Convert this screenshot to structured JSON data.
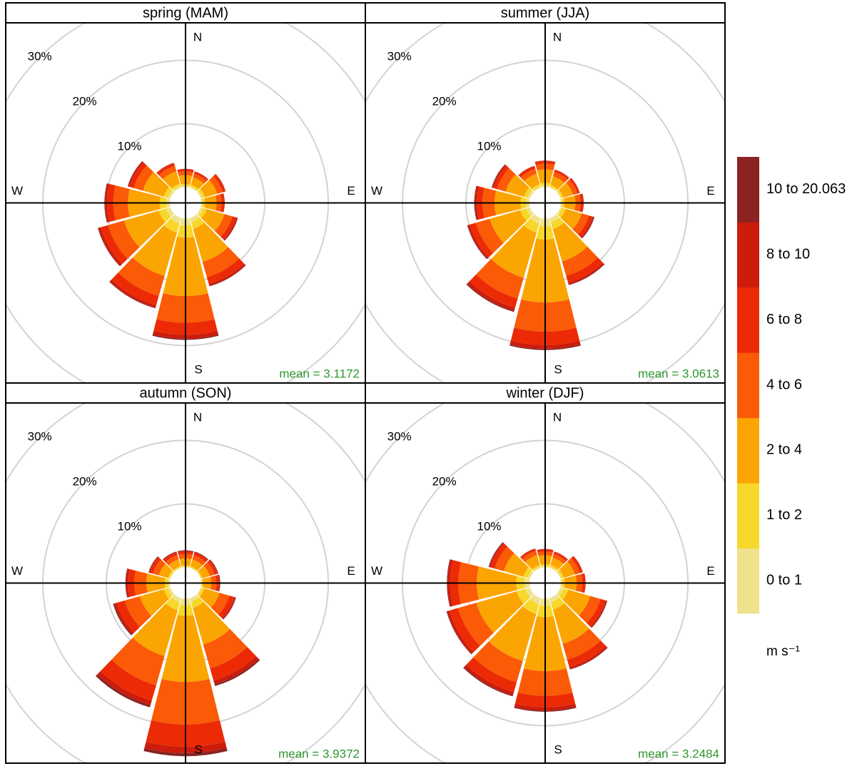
{
  "chart_data": [
    {
      "type": "windrose",
      "title": "spring (MAM)",
      "annotation": "mean = 3.1172",
      "directions": [
        0,
        30,
        60,
        90,
        120,
        150,
        180,
        210,
        240,
        270,
        300,
        330
      ],
      "compass": [
        "N",
        "E",
        "S",
        "W"
      ],
      "rlim": [
        0,
        30
      ],
      "rticks": [
        {
          "value": 10,
          "label": "10%"
        },
        {
          "value": 20,
          "label": "20%"
        },
        {
          "value": 30,
          "label": "30%"
        }
      ],
      "series": [
        {
          "values": [
            0.2,
            0.2,
            0.3,
            0.2,
            0.4,
            0.7,
            1.1,
            0.9,
            0.7,
            0.6,
            0.4,
            0.3
          ]
        },
        {
          "values": [
            0.3,
            0.3,
            0.4,
            0.4,
            0.6,
            1.1,
            1.9,
            1.5,
            1.2,
            1.0,
            0.7,
            0.4
          ]
        },
        {
          "values": [
            1.4,
            1.2,
            2.0,
            1.8,
            2.9,
            5.4,
            9.2,
            7.1,
            5.7,
            5.0,
            3.4,
            2.0
          ]
        },
        {
          "values": [
            0.6,
            0.6,
            0.9,
            0.8,
            1.3,
            2.5,
            4.2,
            3.3,
            2.6,
            2.3,
            1.5,
            0.9
          ]
        },
        {
          "values": [
            0.3,
            0.3,
            0.4,
            0.4,
            0.6,
            1.1,
            1.9,
            1.5,
            1.2,
            1.0,
            0.7,
            0.4
          ]
        },
        {
          "values": [
            0.1,
            0.1,
            0.1,
            0.1,
            0.2,
            0.3,
            0.6,
            0.4,
            0.4,
            0.3,
            0.2,
            0.1
          ]
        },
        {
          "values": [
            0.0,
            0.0,
            0.0,
            0.0,
            0.1,
            0.1,
            0.2,
            0.1,
            0.1,
            0.1,
            0.1,
            0.0
          ]
        }
      ]
    },
    {
      "type": "windrose",
      "title": "summer (JJA)",
      "annotation": "mean = 3.0613",
      "directions": [
        0,
        30,
        60,
        90,
        120,
        150,
        180,
        210,
        240,
        270,
        300,
        330
      ],
      "compass": [
        "N",
        "E",
        "S",
        "W"
      ],
      "rlim": [
        0,
        30
      ],
      "rticks": [
        {
          "value": 10,
          "label": "10%"
        },
        {
          "value": 20,
          "label": "20%"
        },
        {
          "value": 30,
          "label": "30%"
        }
      ],
      "series": [
        {
          "values": [
            0.3,
            0.2,
            0.2,
            0.2,
            0.3,
            0.7,
            1.2,
            0.9,
            0.6,
            0.5,
            0.4,
            0.2
          ]
        },
        {
          "values": [
            0.4,
            0.3,
            0.3,
            0.4,
            0.6,
            1.1,
            2.1,
            1.5,
            1.0,
            0.9,
            0.6,
            0.4
          ]
        },
        {
          "values": [
            2.1,
            1.4,
            1.6,
            1.7,
            2.6,
            5.3,
            9.9,
            7.4,
            5.0,
            4.1,
            3.0,
            1.7
          ]
        },
        {
          "values": [
            0.9,
            0.7,
            0.7,
            0.8,
            1.2,
            2.4,
            4.6,
            3.4,
            2.3,
            1.9,
            1.4,
            0.8
          ]
        },
        {
          "values": [
            0.4,
            0.3,
            0.3,
            0.4,
            0.6,
            1.1,
            2.1,
            1.5,
            1.0,
            0.9,
            0.6,
            0.4
          ]
        },
        {
          "values": [
            0.1,
            0.1,
            0.1,
            0.1,
            0.2,
            0.3,
            0.6,
            0.5,
            0.3,
            0.3,
            0.2,
            0.1
          ]
        },
        {
          "values": [
            0.0,
            0.0,
            0.0,
            0.0,
            0.1,
            0.1,
            0.2,
            0.2,
            0.1,
            0.1,
            0.1,
            0.0
          ]
        }
      ]
    },
    {
      "type": "windrose",
      "title": "autumn (SON)",
      "annotation": "mean = 3.9372",
      "directions": [
        0,
        30,
        60,
        90,
        120,
        150,
        180,
        210,
        240,
        270,
        300,
        330
      ],
      "compass": [
        "N",
        "E",
        "S",
        "W"
      ],
      "rlim": [
        0,
        30
      ],
      "rticks": [
        {
          "value": 10,
          "label": "10%"
        },
        {
          "value": 20,
          "label": "20%"
        },
        {
          "value": 30,
          "label": "30%"
        }
      ],
      "series": [
        {
          "values": [
            0.1,
            0.1,
            0.1,
            0.1,
            0.2,
            0.6,
            1.0,
            0.7,
            0.4,
            0.3,
            0.1,
            0.1
          ]
        },
        {
          "values": [
            0.2,
            0.2,
            0.2,
            0.2,
            0.4,
            1.0,
            1.7,
            1.3,
            0.7,
            0.5,
            0.3,
            0.2
          ]
        },
        {
          "values": [
            1.1,
            1.1,
            1.2,
            1.3,
            2.5,
            6.0,
            10.4,
            7.5,
            3.9,
            2.9,
            1.5,
            1.1
          ]
        },
        {
          "values": [
            0.7,
            0.7,
            0.8,
            0.8,
            1.6,
            3.9,
            6.7,
            4.8,
            2.5,
            1.9,
            1.0,
            0.7
          ]
        },
        {
          "values": [
            0.4,
            0.4,
            0.4,
            0.4,
            0.8,
            2.0,
            3.5,
            2.5,
            1.3,
            1.0,
            0.5,
            0.4
          ]
        },
        {
          "values": [
            0.1,
            0.1,
            0.1,
            0.1,
            0.2,
            0.6,
            1.0,
            0.7,
            0.4,
            0.3,
            0.1,
            0.1
          ]
        },
        {
          "values": [
            0.1,
            0.1,
            0.1,
            0.1,
            0.1,
            0.3,
            0.5,
            0.4,
            0.2,
            0.1,
            0.1,
            0.1
          ]
        }
      ]
    },
    {
      "type": "windrose",
      "title": "winter (DJF)",
      "annotation": "mean = 3.2484",
      "directions": [
        0,
        30,
        60,
        90,
        120,
        150,
        180,
        210,
        240,
        270,
        300,
        330
      ],
      "compass": [
        "N",
        "E",
        "S",
        "W"
      ],
      "rlim": [
        0,
        30
      ],
      "rticks": [
        {
          "value": 10,
          "label": "10%"
        },
        {
          "value": 20,
          "label": "20%"
        },
        {
          "value": 30,
          "label": "30%"
        }
      ],
      "series": [
        {
          "values": [
            0.2,
            0.2,
            0.2,
            0.2,
            0.5,
            0.7,
            1.1,
            1.0,
            0.8,
            0.8,
            0.4,
            0.2
          ]
        },
        {
          "values": [
            0.3,
            0.3,
            0.4,
            0.4,
            0.8,
            1.2,
            1.8,
            1.6,
            1.4,
            1.3,
            0.7,
            0.3
          ]
        },
        {
          "values": [
            1.4,
            1.2,
            1.8,
            1.9,
            3.6,
            5.6,
            8.5,
            7.7,
            6.6,
            6.2,
            3.2,
            1.6
          ]
        },
        {
          "values": [
            0.6,
            0.6,
            0.8,
            0.9,
            1.7,
            2.6,
            3.9,
            3.5,
            3.0,
            2.9,
            1.5,
            0.7
          ]
        },
        {
          "values": [
            0.3,
            0.3,
            0.4,
            0.4,
            0.8,
            1.2,
            1.8,
            1.6,
            1.4,
            1.3,
            0.7,
            0.3
          ]
        },
        {
          "values": [
            0.1,
            0.1,
            0.1,
            0.1,
            0.2,
            0.3,
            0.5,
            0.5,
            0.4,
            0.4,
            0.2,
            0.1
          ]
        },
        {
          "values": [
            0.0,
            0.0,
            0.0,
            0.0,
            0.1,
            0.1,
            0.2,
            0.2,
            0.1,
            0.1,
            0.1,
            0.0
          ]
        }
      ]
    }
  ],
  "legend": {
    "title": "m s⁻¹",
    "items": [
      {
        "name": "0 to 1",
        "color": "#efe28c"
      },
      {
        "name": "1 to 2",
        "color": "#f7d82a"
      },
      {
        "name": "2 to 4",
        "color": "#fba503"
      },
      {
        "name": "4 to 6",
        "color": "#fb5a07"
      },
      {
        "name": "6 to 8",
        "color": "#ec2b06"
      },
      {
        "name": "8 to 10",
        "color": "#cd1c0b"
      },
      {
        "name": "10 to 20.063",
        "color": "#8b2323"
      }
    ]
  }
}
